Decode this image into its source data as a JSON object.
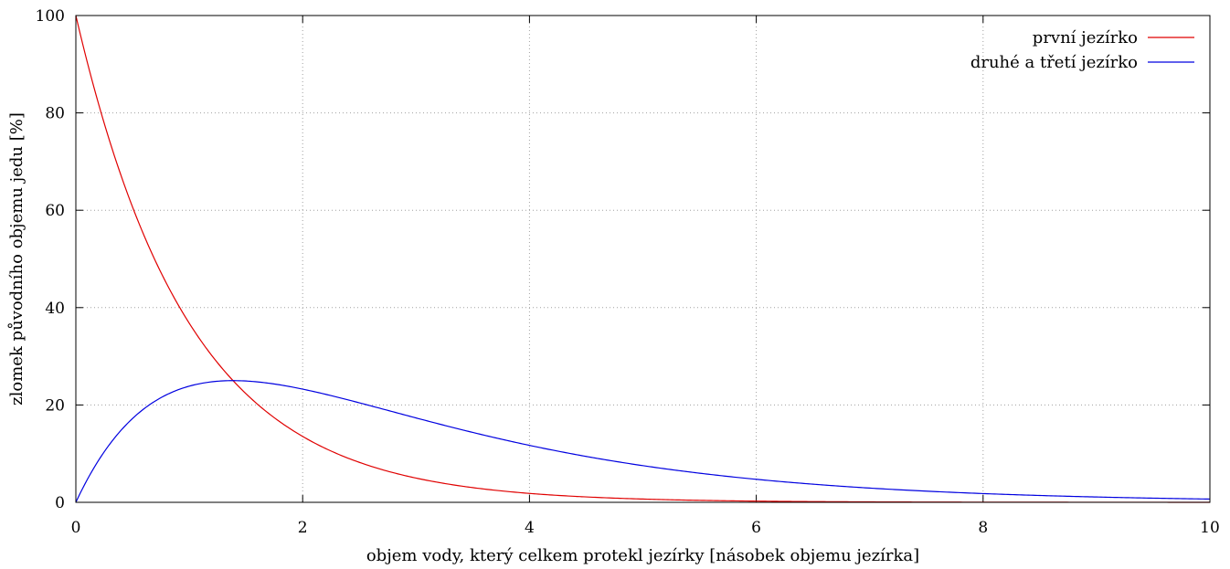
{
  "chart_data": {
    "type": "line",
    "title": "",
    "xlabel": "objem vody, který celkem protekl jezírky [násobek objemu jezírka]",
    "ylabel": "zlomek původního objemu jedu [%]",
    "xlim": [
      0,
      10
    ],
    "ylim": [
      0,
      100
    ],
    "x_ticks": [
      0,
      2,
      4,
      6,
      8,
      10
    ],
    "y_ticks": [
      0,
      20,
      40,
      60,
      80,
      100
    ],
    "grid": true,
    "legend_position": "top-right",
    "series": [
      {
        "name": "první jezírko",
        "color": "#e00000",
        "formula": "100*exp(-x)",
        "x": [
          0,
          0.5,
          1,
          1.39,
          2,
          3,
          4,
          5,
          6,
          8,
          10
        ],
        "y": [
          100,
          60.7,
          36.8,
          25,
          13.5,
          5.0,
          1.8,
          0.7,
          0.25,
          0.03,
          0.0
        ]
      },
      {
        "name": "druhé a třetí jezírko",
        "color": "#0000e0",
        "formula": "100*(exp(-x/2)-exp(-x))",
        "x": [
          0,
          0.5,
          1,
          1.39,
          2,
          3,
          4,
          5,
          6,
          8,
          10
        ],
        "y": [
          0,
          17.2,
          23.8,
          25,
          23.3,
          17.3,
          11.7,
          7.5,
          4.7,
          1.8,
          0.7
        ]
      }
    ]
  }
}
